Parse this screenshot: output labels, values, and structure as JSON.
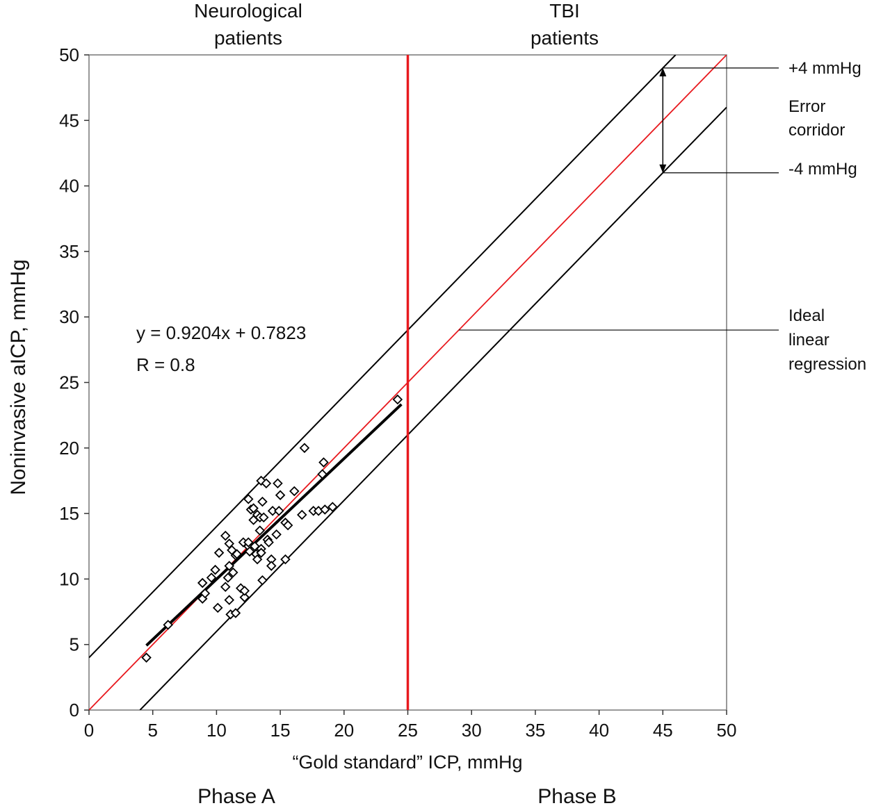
{
  "chart_data": {
    "type": "scatter",
    "xlabel": "“Gold standard” ICP, mmHg",
    "ylabel": "Noninvasive aICP, mmHg",
    "xlim": [
      0,
      50
    ],
    "ylim": [
      0,
      50
    ],
    "xticks": [
      "0",
      "5",
      "10",
      "15",
      "20",
      "25",
      "30",
      "35",
      "40",
      "45",
      "50"
    ],
    "yticks": [
      "0",
      "5",
      "10",
      "15",
      "20",
      "25",
      "30",
      "35",
      "40",
      "45",
      "50"
    ],
    "top_labels": [
      {
        "line1": "Neurological",
        "line2": "patients"
      },
      {
        "line1": "TBI",
        "line2": "patients"
      }
    ],
    "phase_labels": [
      "Phase A",
      "Phase B"
    ],
    "divider_x": 25,
    "equation": "y = 0.9204x + 0.7823",
    "r_label": "R = 0.8",
    "regression": {
      "slope": 0.9204,
      "intercept": 0.7823,
      "x_range": [
        4.5,
        24.5
      ]
    },
    "ideal_line": {
      "slope": 1,
      "intercept": 0
    },
    "corridor_offset": 4,
    "annotations": {
      "plus": "+4 mmHg",
      "minus": "-4 mmHg",
      "corridor_1": "Error",
      "corridor_2": "corridor",
      "ideal_1": "Ideal",
      "ideal_2": "linear",
      "ideal_3": "regression"
    },
    "colors": {
      "ideal": "#e8191e",
      "divider": "#e8191e",
      "points": "#000000"
    },
    "points": [
      [
        4.5,
        4.0
      ],
      [
        6.2,
        6.5
      ],
      [
        8.9,
        8.5
      ],
      [
        9.1,
        8.9
      ],
      [
        8.9,
        9.7
      ],
      [
        9.6,
        10.1
      ],
      [
        9.9,
        10.7
      ],
      [
        10.1,
        7.8
      ],
      [
        10.2,
        12.0
      ],
      [
        10.7,
        13.3
      ],
      [
        10.7,
        9.4
      ],
      [
        10.9,
        10.1
      ],
      [
        11.0,
        12.7
      ],
      [
        11.0,
        11.0
      ],
      [
        11.0,
        8.4
      ],
      [
        11.1,
        7.3
      ],
      [
        11.2,
        12.2
      ],
      [
        11.3,
        10.5
      ],
      [
        11.5,
        7.4
      ],
      [
        11.5,
        11.8
      ],
      [
        11.6,
        11.9
      ],
      [
        11.9,
        9.3
      ],
      [
        12.1,
        12.8
      ],
      [
        12.2,
        8.6
      ],
      [
        12.2,
        9.1
      ],
      [
        12.5,
        12.5
      ],
      [
        12.5,
        12.8
      ],
      [
        12.6,
        12.1
      ],
      [
        12.5,
        16.1
      ],
      [
        12.7,
        15.3
      ],
      [
        12.9,
        14.5
      ],
      [
        12.9,
        15.4
      ],
      [
        13.0,
        12.5
      ],
      [
        13.1,
        11.9
      ],
      [
        13.2,
        11.5
      ],
      [
        13.2,
        14.9
      ],
      [
        13.4,
        14.7
      ],
      [
        13.4,
        13.7
      ],
      [
        13.5,
        17.5
      ],
      [
        13.5,
        12.3
      ],
      [
        13.5,
        12.0
      ],
      [
        13.6,
        15.9
      ],
      [
        13.6,
        9.9
      ],
      [
        13.7,
        14.7
      ],
      [
        13.9,
        17.3
      ],
      [
        14.0,
        13.0
      ],
      [
        14.1,
        12.8
      ],
      [
        14.3,
        11.5
      ],
      [
        14.3,
        11.0
      ],
      [
        14.4,
        15.2
      ],
      [
        14.7,
        13.4
      ],
      [
        14.8,
        17.3
      ],
      [
        14.9,
        15.2
      ],
      [
        15.0,
        16.4
      ],
      [
        15.4,
        14.3
      ],
      [
        15.6,
        14.1
      ],
      [
        15.4,
        11.5
      ],
      [
        16.1,
        16.7
      ],
      [
        16.7,
        14.9
      ],
      [
        16.9,
        20.0
      ],
      [
        17.6,
        15.2
      ],
      [
        18.0,
        15.2
      ],
      [
        18.3,
        18.0
      ],
      [
        18.4,
        18.9
      ],
      [
        18.5,
        15.3
      ],
      [
        19.1,
        15.5
      ],
      [
        24.2,
        23.7
      ]
    ]
  }
}
